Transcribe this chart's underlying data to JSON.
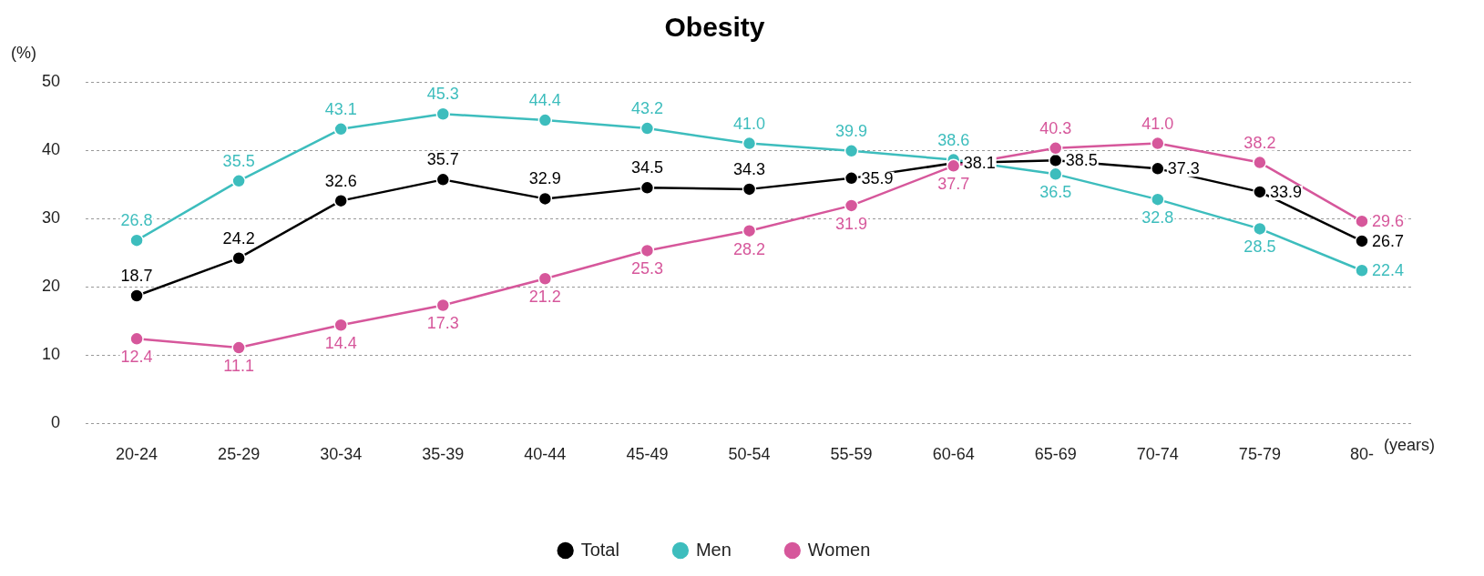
{
  "chart_data": {
    "type": "line",
    "title": "Obesity",
    "ylabel": "(%)",
    "xlabel": "(years)",
    "categories": [
      "20-24",
      "25-29",
      "30-34",
      "35-39",
      "40-44",
      "45-49",
      "50-54",
      "55-59",
      "60-64",
      "65-69",
      "70-74",
      "75-79",
      "80-"
    ],
    "series": [
      {
        "name": "Total",
        "color": "#000000",
        "values": [
          18.7,
          24.2,
          32.6,
          35.7,
          32.9,
          34.5,
          34.3,
          35.9,
          38.1,
          38.5,
          37.3,
          33.9,
          26.7
        ],
        "value_labels": [
          "18.7",
          "24.2",
          "32.6",
          "35.7",
          "32.9",
          "34.5",
          "34.3",
          "35.9",
          "38.1",
          "38.5",
          "37.3",
          "33.9",
          "26.7"
        ]
      },
      {
        "name": "Men",
        "color": "#3dbdbd",
        "values": [
          26.8,
          35.5,
          43.1,
          45.3,
          44.4,
          43.2,
          41.0,
          39.9,
          38.6,
          36.5,
          32.8,
          28.5,
          22.4
        ],
        "value_labels": [
          "26.8",
          "35.5",
          "43.1",
          "45.3",
          "44.4",
          "43.2",
          "41.0",
          "39.9",
          "38.6",
          "36.5",
          "32.8",
          "28.5",
          "22.4"
        ]
      },
      {
        "name": "Women",
        "color": "#d6579b",
        "values": [
          12.4,
          11.1,
          14.4,
          17.3,
          21.2,
          25.3,
          28.2,
          31.9,
          37.7,
          40.3,
          41.0,
          38.2,
          29.6
        ],
        "value_labels": [
          "12.4",
          "11.1",
          "14.4",
          "17.3",
          "21.2",
          "25.3",
          "28.2",
          "31.9",
          "37.7",
          "40.3",
          "41.0",
          "38.2",
          "29.6"
        ]
      }
    ],
    "ylim": [
      0,
      50
    ],
    "yticks": [
      0,
      10,
      20,
      30,
      40,
      50
    ],
    "grid": "y",
    "legend": "bottom",
    "marker": "circle",
    "line_style": "solid",
    "data_labels": true
  }
}
